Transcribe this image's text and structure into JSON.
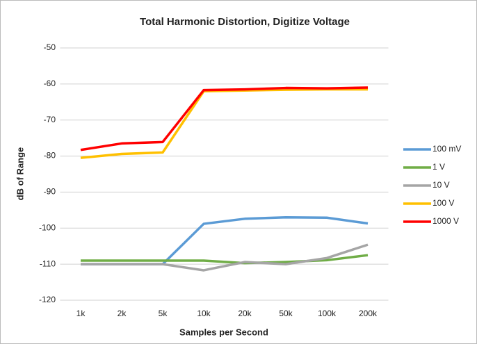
{
  "chart_data": {
    "type": "line",
    "title": "Total Harmonic Distortion, Digitize Voltage",
    "x_label": "Samples per Second",
    "y_label": "dB of Range",
    "categories": [
      "1k",
      "2k",
      "5k",
      "10k",
      "20k",
      "50k",
      "100k",
      "200k"
    ],
    "series": [
      {
        "name": "100 mV",
        "color": "#5b9bd5",
        "values": [
          -110,
          -110,
          -110,
          -98.8,
          -97.4,
          -97,
          -97.1,
          -98.7
        ]
      },
      {
        "name": "1 V",
        "color": "#70ad47",
        "values": [
          -109,
          -109,
          -109,
          -109,
          -109.7,
          -109.4,
          -108.9,
          -107.5
        ]
      },
      {
        "name": "10 V",
        "color": "#a5a5a5",
        "values": [
          -110,
          -110,
          -110,
          -111.7,
          -109.4,
          -110,
          -108.3,
          -104.6
        ]
      },
      {
        "name": "100 V",
        "color": "#ffc000",
        "values": [
          -80.5,
          -79.4,
          -79,
          -62,
          -61.8,
          -61.6,
          -61.5,
          -61.5
        ]
      },
      {
        "name": "1000 V",
        "color": "#ff0000",
        "values": [
          -78.3,
          -76.5,
          -76.1,
          -61.7,
          -61.5,
          -61.1,
          -61.2,
          -61
        ]
      }
    ],
    "ylim": [
      -120,
      -50
    ],
    "yticks": [
      -120,
      -110,
      -100,
      -90,
      -80,
      -70,
      -60,
      -50
    ],
    "grid": true,
    "legend": "right"
  }
}
